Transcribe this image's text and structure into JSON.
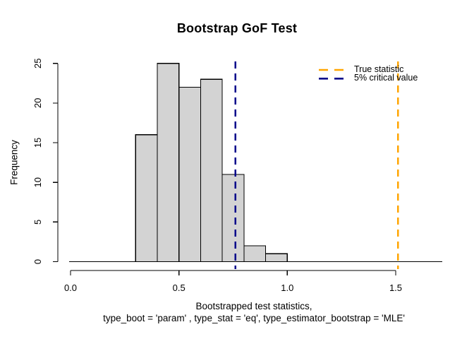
{
  "title": "Bootstrap GoF Test",
  "axes": {
    "ylabel": "Frequency",
    "xlabel_line1": "Bootstrapped test statistics,",
    "xlabel_line2": "type_boot = 'param' , type_stat = 'eq', type_estimator_bootstrap = 'MLE'"
  },
  "legend": {
    "items": [
      {
        "label": "True statistic",
        "color": "#ffa500"
      },
      {
        "label": "5% critical value",
        "color": "#00008b"
      }
    ]
  },
  "chart_data": {
    "type": "bar",
    "subtype": "histogram",
    "title": "Bootstrap GoF Test",
    "xlabel": "Bootstrapped test statistics,\ntype_boot = 'param' , type_stat = 'eq', type_estimator_bootstrap = 'MLE'",
    "ylabel": "Frequency",
    "bin_breaks": [
      0.3,
      0.4,
      0.5,
      0.6,
      0.7,
      0.8,
      0.9,
      1.0
    ],
    "counts": [
      16,
      25,
      22,
      23,
      11,
      2,
      1
    ],
    "xlim": [
      0.0,
      1.55
    ],
    "ylim": [
      0,
      25
    ],
    "x_tick_values": [
      0.0,
      0.5,
      1.0,
      1.5
    ],
    "x_tick_labels": [
      "0.0",
      "0.5",
      "1.0",
      "1.5"
    ],
    "y_tick_values": [
      0,
      5,
      10,
      15,
      20,
      25
    ],
    "y_tick_labels": [
      "0",
      "5",
      "10",
      "15",
      "20",
      "25"
    ],
    "bar_fill": "#d3d3d3",
    "bar_border": "#000000",
    "grid": false,
    "legend_position": "topright",
    "vlines": [
      {
        "label": "True statistic",
        "x": 1.51,
        "color": "#ffa500",
        "style": "dashed"
      },
      {
        "label": "5% critical value",
        "x": 0.76,
        "color": "#00008b",
        "style": "dashed"
      }
    ]
  }
}
